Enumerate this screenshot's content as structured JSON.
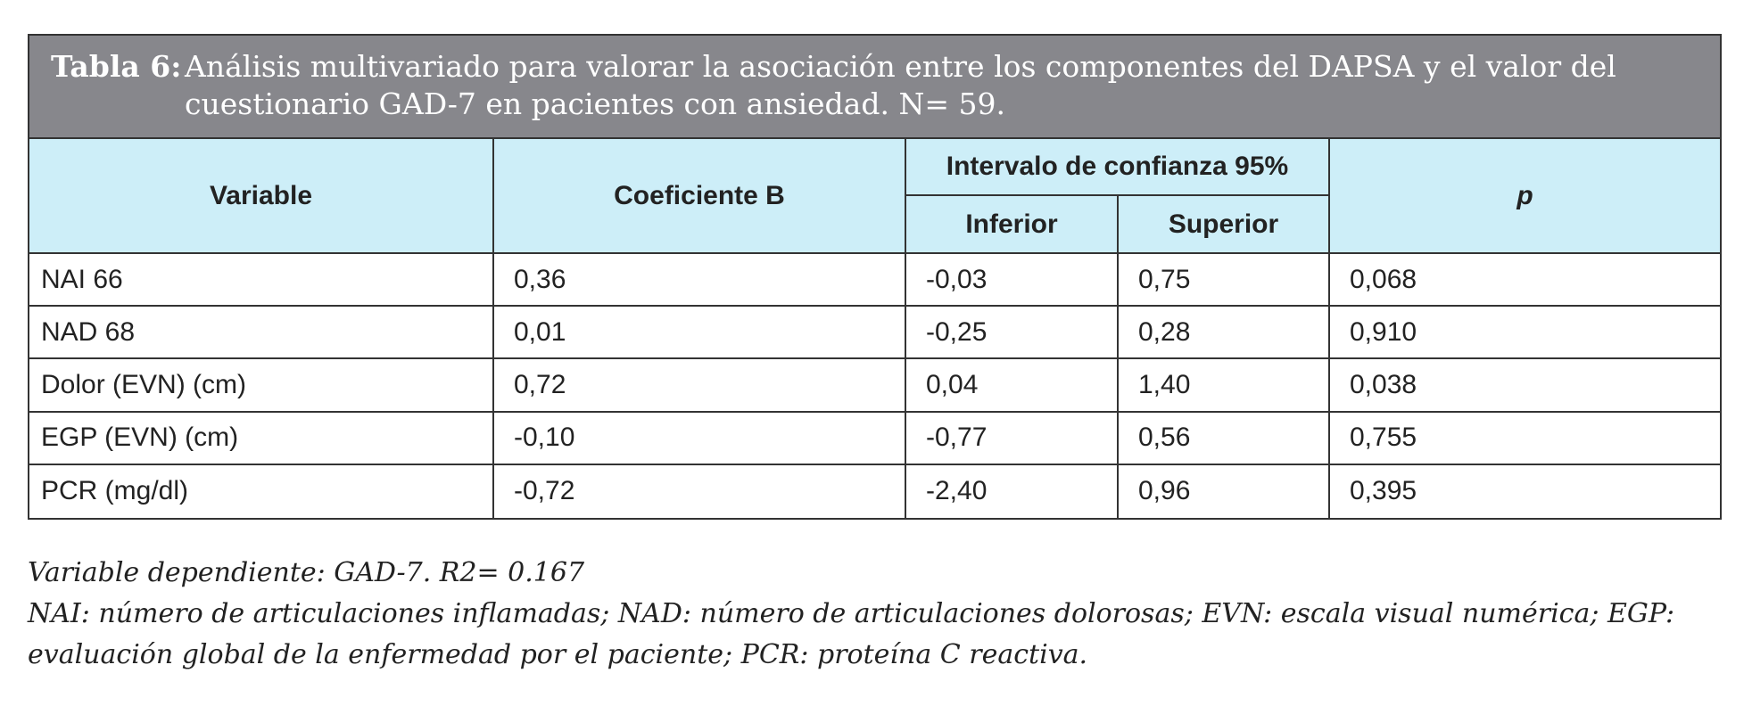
{
  "table": {
    "label": "Tabla 6:",
    "title": "Análisis multivariado para valorar la asociación entre los componentes del DAPSA y el valor del cuestionario GAD-7 en pacientes con ansiedad. N= 59.",
    "headers": {
      "variable": "Variable",
      "coef": "Coeficiente B",
      "ci": "Intervalo de confianza 95%",
      "lower": "Inferior",
      "upper": "Superior",
      "p": "p"
    },
    "rows": [
      [
        "NAI 66",
        "0,36",
        "-0,03",
        "0,75",
        "0,068"
      ],
      [
        "NAD 68",
        "0,01",
        "-0,25",
        "0,28",
        "0,910"
      ],
      [
        "Dolor (EVN) (cm)",
        "0,72",
        "0,04",
        "1,40",
        "0,038"
      ],
      [
        "EGP (EVN) (cm)",
        "-0,10",
        "-0,77",
        "0,56",
        "0,755"
      ],
      [
        "PCR (mg/dl)",
        "-0,72",
        "-2,40",
        "0,96",
        "0,395"
      ]
    ]
  },
  "notes": [
    "Variable dependiente: GAD-7. R2= 0.167",
    "NAI: número de articulaciones inflamadas; NAD: número de articulaciones dolorosas; EVN: escala visual numérica; EGP: evaluación global de la enfermedad por el paciente; PCR: proteína C reactiva."
  ]
}
